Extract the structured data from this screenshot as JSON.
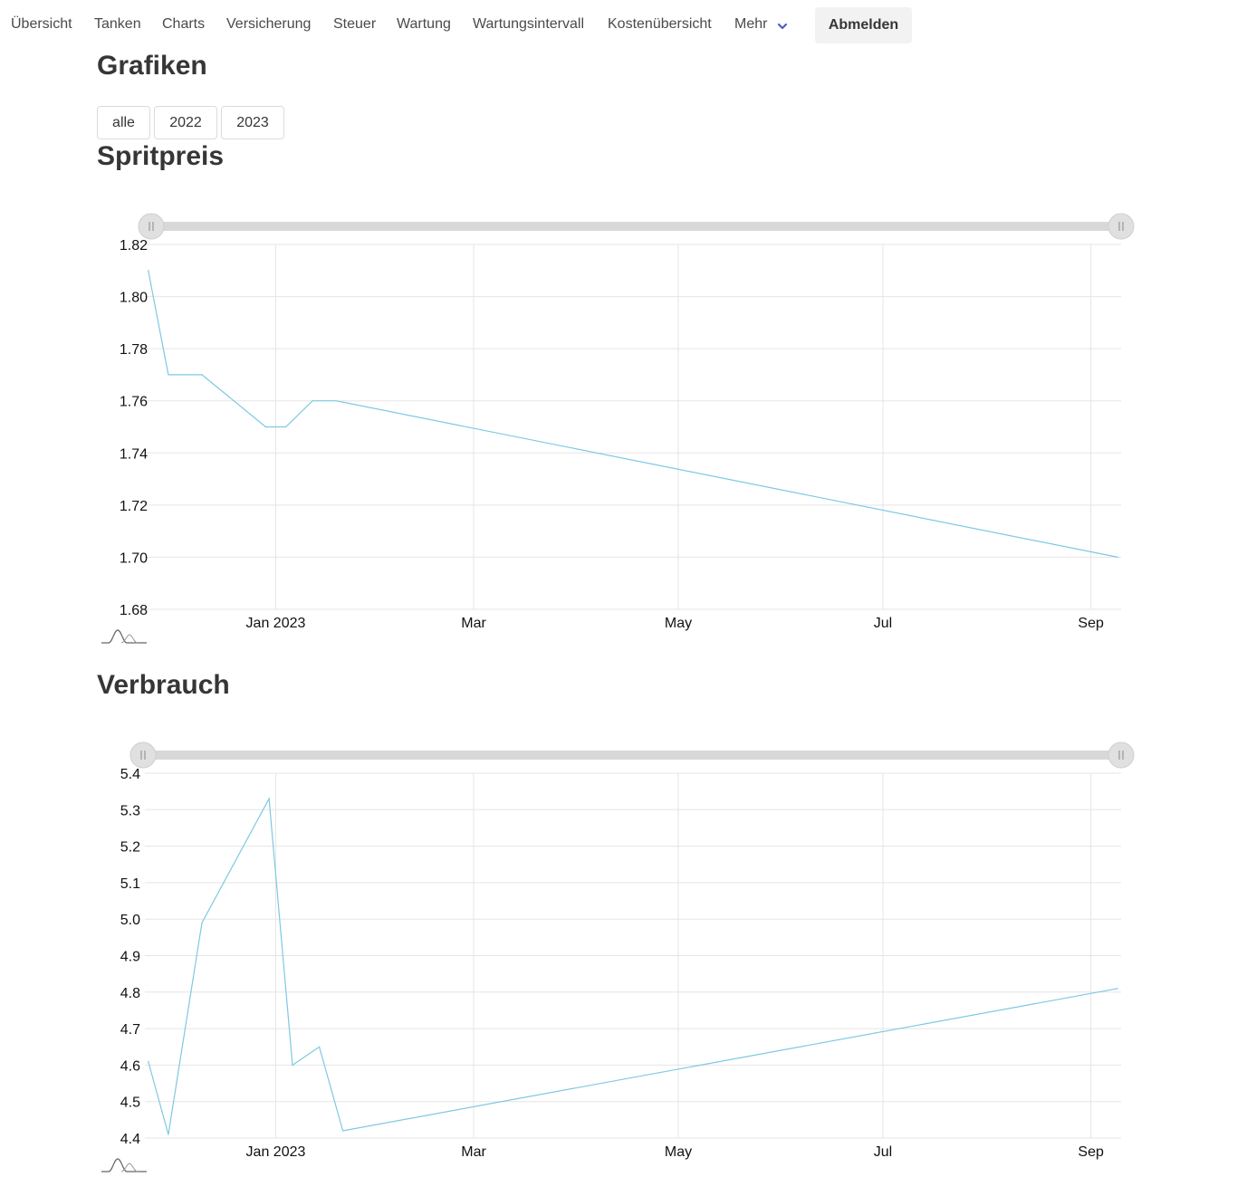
{
  "nav": {
    "items": [
      "Übersicht",
      "Tanken",
      "Charts",
      "Versicherung",
      "Steuer",
      "Wartung",
      "Wartungsintervall",
      "Kostenübersicht",
      "Mehr"
    ],
    "logout_label": "Abmelden"
  },
  "page": {
    "title": "Grafiken",
    "filters": [
      "alle",
      "2022",
      "2023"
    ]
  },
  "colors": {
    "line": "#7ec8e3",
    "grid": "#e5e5e5",
    "slider_track": "#d8d8d8",
    "slider_handle": "#e0e0e0"
  },
  "chart_data": [
    {
      "type": "line",
      "title": "Spritpreis",
      "x_ticks": [
        {
          "label": "Jan 2023",
          "date": "2023-01-01"
        },
        {
          "label": "Mar",
          "date": "2023-03-01"
        },
        {
          "label": "May",
          "date": "2023-05-01"
        },
        {
          "label": "Jul",
          "date": "2023-07-01"
        },
        {
          "label": "Sep",
          "date": "2023-09-01"
        }
      ],
      "xlim": [
        "2022-11-23",
        "2023-09-10"
      ],
      "y_ticks": [
        "1.82",
        "1.80",
        "1.78",
        "1.76",
        "1.74",
        "1.72",
        "1.70",
        "1.68"
      ],
      "ylim": [
        1.68,
        1.82
      ],
      "series": [
        {
          "x": [
            "2022-11-24",
            "2022-11-30",
            "2022-12-10",
            "2022-12-29",
            "2023-01-04",
            "2023-01-12",
            "2023-01-19",
            "2023-09-09"
          ],
          "y": [
            1.81,
            1.77,
            1.77,
            1.75,
            1.75,
            1.76,
            1.76,
            1.7
          ]
        }
      ],
      "grid": true,
      "range_slider": true
    },
    {
      "type": "line",
      "title": "Verbrauch",
      "x_ticks": [
        {
          "label": "Jan 2023",
          "date": "2023-01-01"
        },
        {
          "label": "Mar",
          "date": "2023-03-01"
        },
        {
          "label": "May",
          "date": "2023-05-01"
        },
        {
          "label": "Jul",
          "date": "2023-07-01"
        },
        {
          "label": "Sep",
          "date": "2023-09-01"
        }
      ],
      "xlim": [
        "2022-11-23",
        "2023-09-10"
      ],
      "y_ticks": [
        "5.4",
        "5.3",
        "5.2",
        "5.1",
        "5.0",
        "4.9",
        "4.8",
        "4.7",
        "4.6",
        "4.5",
        "4.4"
      ],
      "ylim": [
        4.4,
        5.4
      ],
      "series": [
        {
          "x": [
            "2022-11-24",
            "2022-11-30",
            "2022-12-10",
            "2022-12-30",
            "2023-01-06",
            "2023-01-14",
            "2023-01-21",
            "2023-09-09"
          ],
          "y": [
            4.61,
            4.41,
            4.99,
            5.33,
            4.6,
            4.65,
            4.42,
            4.81
          ]
        }
      ],
      "grid": true,
      "range_slider": true
    }
  ]
}
